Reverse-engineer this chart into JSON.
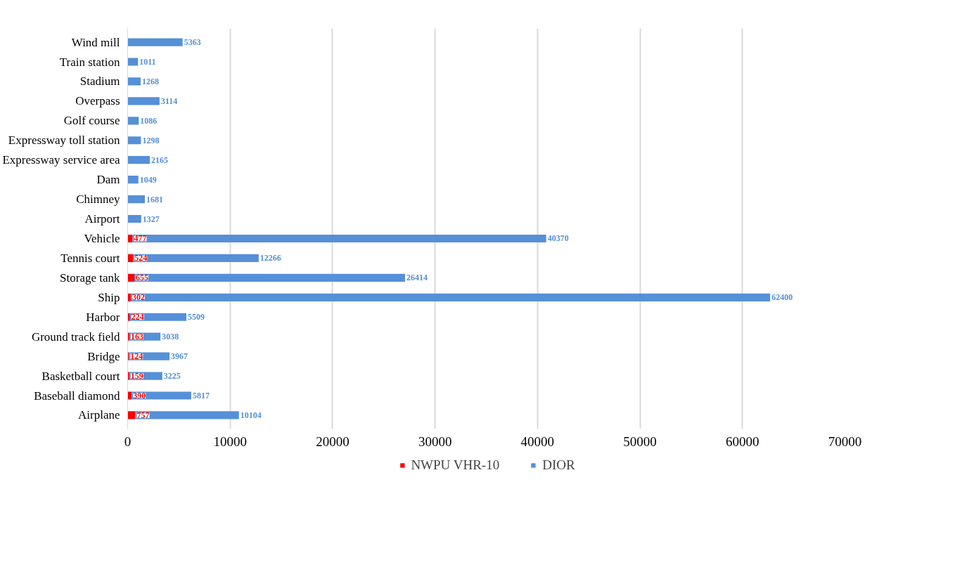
{
  "chart_data": {
    "type": "bar",
    "orientation": "horizontal",
    "stacked": true,
    "categories": [
      "Wind mill",
      "Train station",
      "Stadium",
      "Overpass",
      "Golf course",
      "Expressway toll station",
      "Expressway service area",
      "Dam",
      "Chimney",
      "Airport",
      "Vehicle",
      "Tennis court",
      "Storage tank",
      "Ship",
      "Harbor",
      "Ground track field",
      "Bridge",
      "Basketball court",
      "Baseball diamond",
      "Airplane"
    ],
    "series": [
      {
        "name": "NWPU VHR-10",
        "color": "#ff0000",
        "values": [
          null,
          null,
          null,
          null,
          null,
          null,
          null,
          null,
          null,
          null,
          477,
          524,
          655,
          302,
          224,
          163,
          124,
          159,
          390,
          757
        ]
      },
      {
        "name": "DIOR",
        "color": "#5590d8",
        "values": [
          5363,
          1011,
          1268,
          3114,
          1086,
          1298,
          2165,
          1049,
          1681,
          1327,
          40370,
          12266,
          26414,
          62400,
          5509,
          3038,
          3967,
          3225,
          5817,
          10104
        ]
      }
    ],
    "xlim": [
      0,
      70000
    ],
    "xticks": [
      0,
      10000,
      20000,
      30000,
      40000,
      50000,
      60000,
      70000
    ],
    "grid": "x",
    "legend": "bottom",
    "data_labels": true
  }
}
